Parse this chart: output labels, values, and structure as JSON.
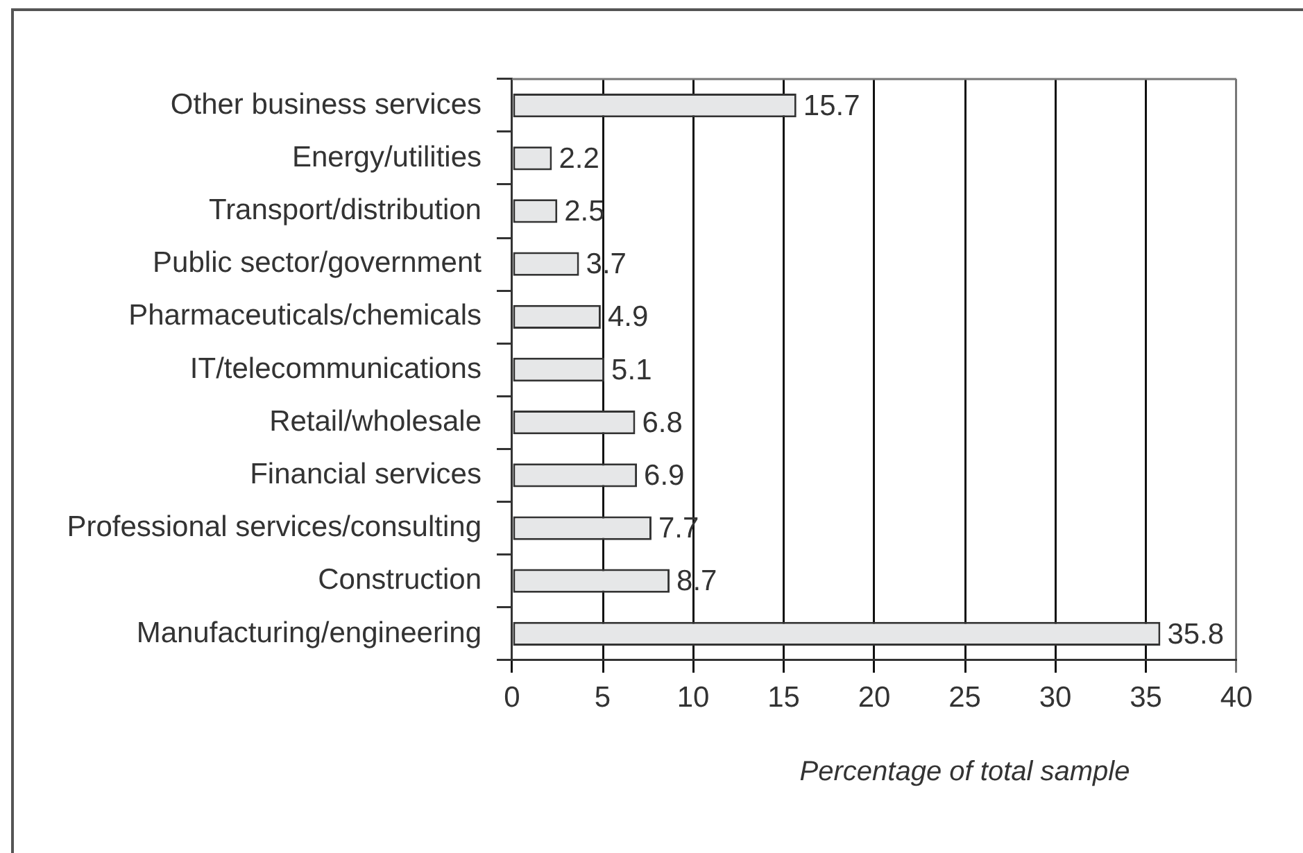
{
  "chart_data": {
    "type": "bar",
    "orientation": "horizontal",
    "categories": [
      "Other business services",
      "Energy/utilities",
      "Transport/distribution",
      "Public sector/government",
      "Pharmaceuticals/chemicals",
      "IT/telecommunications",
      "Retail/wholesale",
      "Financial services",
      "Professional services/consulting",
      "Construction",
      "Manufacturing/engineering"
    ],
    "values": [
      15.7,
      2.2,
      2.5,
      3.7,
      4.9,
      5.1,
      6.8,
      6.9,
      7.7,
      8.7,
      35.8
    ],
    "color": "#e6e7e8",
    "xlim": [
      0,
      40
    ],
    "xticks": [
      0,
      5,
      10,
      15,
      20,
      25,
      30,
      35,
      40
    ],
    "xlabel": "Percentage of total sample",
    "data_labels": true,
    "grid": "x"
  }
}
